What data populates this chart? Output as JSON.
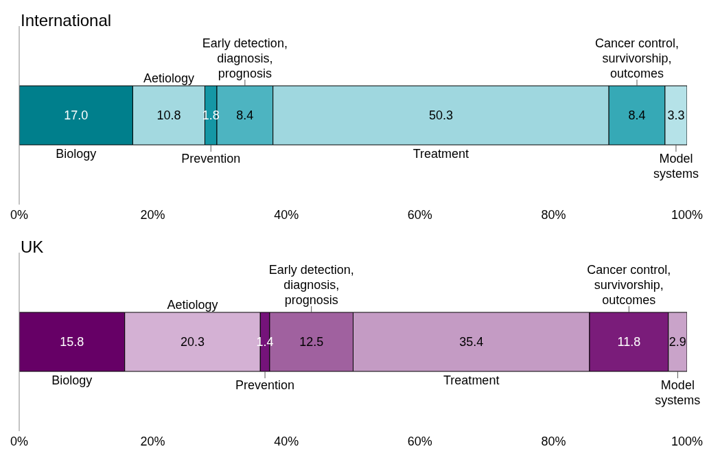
{
  "chart_data": [
    {
      "type": "bar",
      "title": "International",
      "orientation": "horizontal",
      "stacked": true,
      "categories": [
        null
      ],
      "grid": false,
      "tick_labels": "x",
      "xlim": [
        0,
        100
      ],
      "xticks": [
        {
          "value": 0,
          "label": "0%"
        },
        {
          "value": 20,
          "label": "20%"
        },
        {
          "value": 40,
          "label": "40%"
        },
        {
          "value": 60,
          "label": "60%"
        },
        {
          "value": 80,
          "label": "80%"
        },
        {
          "value": 100,
          "label": "100%"
        }
      ],
      "series": [
        {
          "name": "Biology",
          "color": "#007f8c",
          "values": [
            17.0
          ],
          "value_labels": [
            "17.0"
          ]
        },
        {
          "name": "Aetiology",
          "color": "#a3d9e0",
          "values": [
            10.8
          ],
          "value_labels": [
            "10.8"
          ]
        },
        {
          "name": "Prevention",
          "color": "#1597a5",
          "values": [
            1.8
          ],
          "value_labels": [
            "1.8"
          ]
        },
        {
          "name": "Early detection,\ndiagnosis,\nprognosis",
          "color": "#4db4c1",
          "values": [
            8.4
          ],
          "value_labels": [
            "8.4"
          ]
        },
        {
          "name": "Treatment",
          "color": "#9fd7df",
          "values": [
            50.3
          ],
          "value_labels": [
            "50.3"
          ]
        },
        {
          "name": "Cancer control,\nsurvivorship,\noutcomes",
          "color": "#36a9b6",
          "values": [
            8.4
          ],
          "value_labels": [
            "8.4"
          ]
        },
        {
          "name": "Model\nsystems",
          "color": "#b5e2e8",
          "values": [
            3.3
          ],
          "value_labels": [
            "3.3"
          ]
        }
      ]
    },
    {
      "type": "bar",
      "title": "UK",
      "orientation": "horizontal",
      "stacked": true,
      "categories": [
        null
      ],
      "grid": false,
      "tick_labels": "x",
      "xlim": [
        0,
        100
      ],
      "xticks": [
        {
          "value": 0,
          "label": "0%"
        },
        {
          "value": 20,
          "label": "20%"
        },
        {
          "value": 40,
          "label": "40%"
        },
        {
          "value": 60,
          "label": "60%"
        },
        {
          "value": 80,
          "label": "80%"
        },
        {
          "value": 100,
          "label": "100%"
        }
      ],
      "series": [
        {
          "name": "Biology",
          "color": "#660066",
          "values": [
            15.8
          ],
          "value_labels": [
            "15.8"
          ]
        },
        {
          "name": "Aetiology",
          "color": "#d4b1d4",
          "values": [
            20.3
          ],
          "value_labels": [
            "20.3"
          ]
        },
        {
          "name": "Prevention",
          "color": "#75137a",
          "values": [
            1.4
          ],
          "value_labels": [
            "1.4"
          ]
        },
        {
          "name": "Early detection,\ndiagnosis,\nprognosis",
          "color": "#a0619f",
          "values": [
            12.5
          ],
          "value_labels": [
            "12.5"
          ]
        },
        {
          "name": "Treatment",
          "color": "#c49bc4",
          "values": [
            35.4
          ],
          "value_labels": [
            "35.4"
          ]
        },
        {
          "name": "Cancer control,\nsurvivorship,\noutcomes",
          "color": "#7a1c7a",
          "values": [
            11.8
          ],
          "value_labels": [
            "11.8"
          ]
        },
        {
          "name": "Model\nsystems",
          "color": "#c9a3c9",
          "values": [
            2.9
          ],
          "value_labels": [
            "2.9"
          ]
        }
      ]
    }
  ]
}
